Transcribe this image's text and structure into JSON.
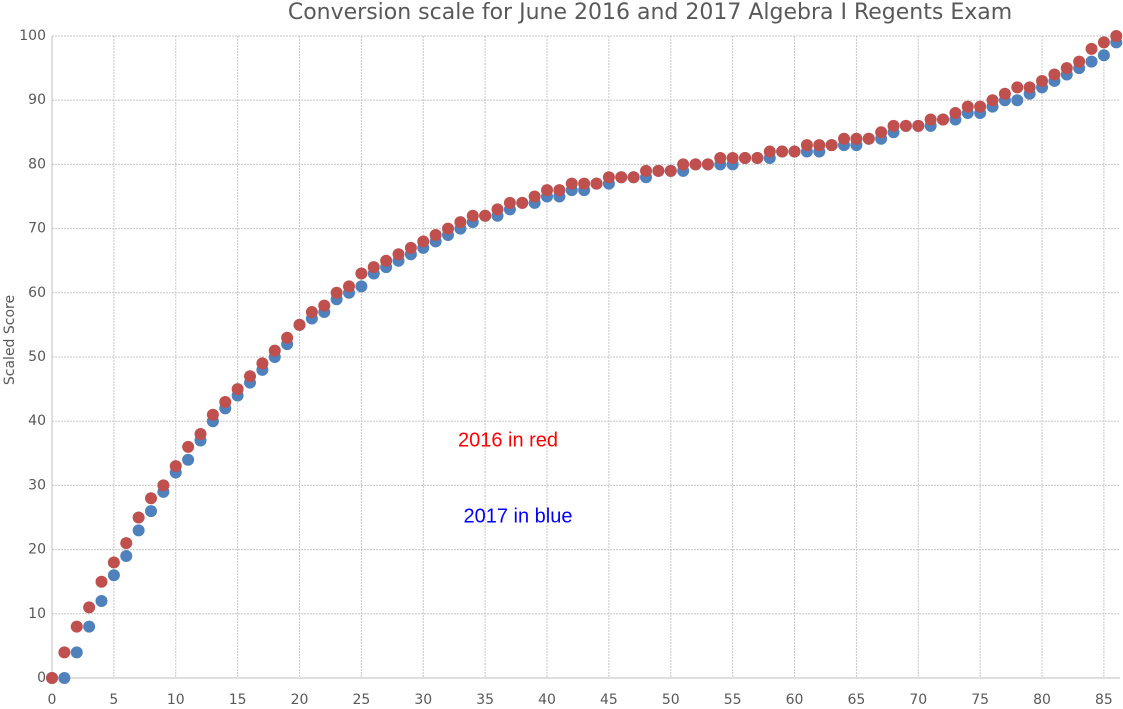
{
  "chart_data": {
    "type": "scatter",
    "title": "Conversion scale for June 2016 and 2017 Algebra I Regents Exam",
    "y_label": "Scaled Score",
    "annotations": [
      {
        "text": "2016 in red",
        "color": "#ff0000"
      },
      {
        "text": "2017 in blue",
        "color": "#0000ff"
      }
    ],
    "x": [
      0,
      1,
      2,
      3,
      4,
      5,
      6,
      7,
      8,
      9,
      10,
      11,
      12,
      13,
      14,
      15,
      16,
      17,
      18,
      19,
      20,
      21,
      22,
      23,
      24,
      25,
      26,
      27,
      28,
      29,
      30,
      31,
      32,
      33,
      34,
      35,
      36,
      37,
      38,
      39,
      40,
      41,
      42,
      43,
      44,
      45,
      46,
      47,
      48,
      49,
      50,
      51,
      52,
      53,
      54,
      55,
      56,
      57,
      58,
      59,
      60,
      61,
      62,
      63,
      64,
      65,
      66,
      67,
      68,
      69,
      70,
      71,
      72,
      73,
      74,
      75,
      76,
      77,
      78,
      79,
      80,
      81,
      82,
      83,
      84,
      85,
      86
    ],
    "series": [
      {
        "name": "2017",
        "color": "#4f81bd",
        "values": [
          0,
          0,
          4,
          8,
          12,
          16,
          19,
          23,
          26,
          29,
          32,
          34,
          37,
          40,
          42,
          44,
          46,
          48,
          50,
          52,
          55,
          56,
          57,
          59,
          60,
          61,
          63,
          64,
          65,
          66,
          67,
          68,
          69,
          70,
          71,
          72,
          72,
          73,
          74,
          74,
          75,
          75,
          76,
          76,
          77,
          77,
          78,
          78,
          78,
          79,
          79,
          79,
          80,
          80,
          80,
          80,
          81,
          81,
          81,
          82,
          82,
          82,
          82,
          83,
          83,
          83,
          84,
          84,
          85,
          86,
          86,
          86,
          87,
          87,
          88,
          88,
          89,
          90,
          90,
          91,
          92,
          93,
          94,
          95,
          96,
          97,
          99
        ]
      },
      {
        "name": "2016",
        "color": "#c0504d",
        "values": [
          0,
          4,
          8,
          11,
          15,
          18,
          21,
          25,
          28,
          30,
          33,
          36,
          38,
          41,
          43,
          45,
          47,
          49,
          51,
          53,
          55,
          57,
          58,
          60,
          61,
          63,
          64,
          65,
          66,
          67,
          68,
          69,
          70,
          71,
          72,
          72,
          73,
          74,
          74,
          75,
          76,
          76,
          77,
          77,
          77,
          78,
          78,
          78,
          79,
          79,
          79,
          80,
          80,
          80,
          81,
          81,
          81,
          81,
          82,
          82,
          82,
          83,
          83,
          83,
          84,
          84,
          84,
          85,
          86,
          86,
          86,
          87,
          87,
          88,
          89,
          89,
          90,
          91,
          92,
          92,
          93,
          94,
          95,
          96,
          98,
          99,
          100
        ]
      }
    ],
    "xlim": [
      0,
      86.3
    ],
    "xticks": [
      0,
      5,
      10,
      15,
      20,
      25,
      30,
      35,
      40,
      45,
      50,
      55,
      60,
      65,
      70,
      75,
      80,
      85
    ],
    "ylim": [
      0,
      100
    ],
    "yticks": [
      0,
      10,
      20,
      30,
      40,
      50,
      60,
      70,
      80,
      90,
      100
    ],
    "grid": true
  }
}
